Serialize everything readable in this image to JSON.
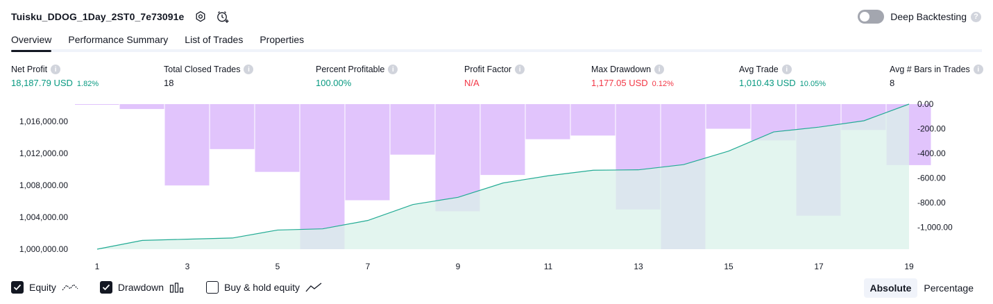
{
  "header": {
    "title": "Tuisku_DDOG_1Day_2ST0_7e73091e",
    "deep_backtesting_label": "Deep Backtesting"
  },
  "tabs": [
    {
      "label": "Overview"
    },
    {
      "label": "Performance Summary"
    },
    {
      "label": "List of Trades"
    },
    {
      "label": "Properties"
    }
  ],
  "metrics": {
    "net_profit": {
      "label": "Net Profit",
      "value": "18,187.79 USD",
      "sub": "1.82%"
    },
    "total_closed_trades": {
      "label": "Total Closed Trades",
      "value": "18"
    },
    "percent_profitable": {
      "label": "Percent Profitable",
      "value": "100.00%"
    },
    "profit_factor": {
      "label": "Profit Factor",
      "value": "N/A"
    },
    "max_drawdown": {
      "label": "Max Drawdown",
      "value": "1,177.05 USD",
      "sub": "0.12%"
    },
    "avg_trade": {
      "label": "Avg Trade",
      "value": "1,010.43 USD",
      "sub": "10.05%"
    },
    "avg_bars": {
      "label": "Avg # Bars in Trades",
      "value": "8"
    }
  },
  "colors": {
    "positive": "#089981",
    "negative": "#f23645",
    "drawdown_bar": "#e1c4fc",
    "equity_line": "#22ab94",
    "equity_fill": "#d9f1ea"
  },
  "chart_data": {
    "type": "area",
    "x": [
      1,
      2,
      3,
      4,
      5,
      6,
      7,
      8,
      9,
      10,
      11,
      12,
      13,
      14,
      15,
      16,
      17,
      18,
      19
    ],
    "x_tick_labels": [
      "1",
      "3",
      "5",
      "7",
      "9",
      "11",
      "13",
      "15",
      "17",
      "19"
    ],
    "left_axis": {
      "ticks": [
        "1,000,000.00",
        "1,004,000.00",
        "1,008,000.00",
        "1,012,000.00",
        "1,016,000.00"
      ],
      "ylim": [
        1000000,
        1018187.79
      ]
    },
    "right_axis": {
      "ticks": [
        "0.00",
        "-200.00",
        "-400.00",
        "-600.00",
        "-800.00",
        "-1,000.00"
      ],
      "ylim": [
        -1177.05,
        0
      ]
    },
    "series": [
      {
        "name": "Equity",
        "axis": "left",
        "values": [
          1000000,
          1001100,
          1001250,
          1001400,
          1002400,
          1002550,
          1003600,
          1005600,
          1006500,
          1008300,
          1009200,
          1009900,
          1009950,
          1010600,
          1012300,
          1014700,
          1015300,
          1016100,
          1018187.79
        ]
      },
      {
        "name": "Drawdown",
        "axis": "right",
        "type": "bar",
        "values": [
          -5,
          -40,
          -660,
          -365,
          -550,
          -1177.05,
          -780,
          -410,
          -870,
          -575,
          -285,
          -255,
          -855,
          -1177.05,
          -200,
          -295,
          -905,
          -210,
          -495
        ]
      }
    ]
  },
  "legend": {
    "equity": {
      "label": "Equity",
      "checked": true
    },
    "drawdown": {
      "label": "Drawdown",
      "checked": true
    },
    "buy_hold": {
      "label": "Buy & hold equity",
      "checked": false
    }
  },
  "modes": {
    "absolute": "Absolute",
    "percentage": "Percentage",
    "selected": "absolute"
  }
}
